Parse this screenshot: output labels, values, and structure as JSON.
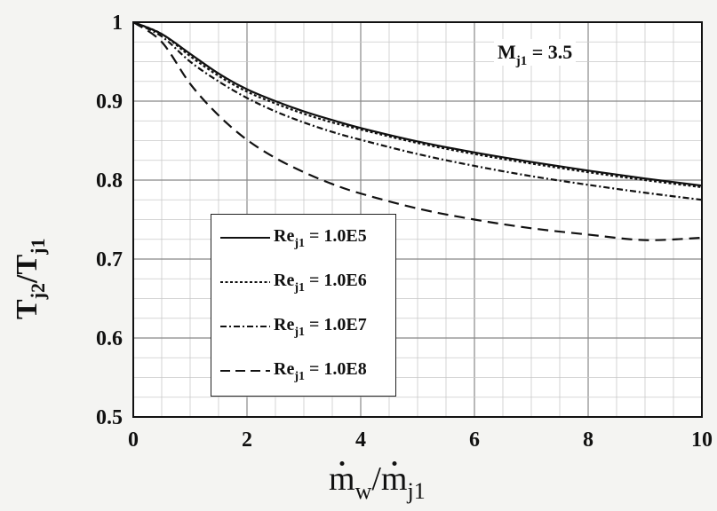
{
  "chart_data": {
    "type": "line",
    "title": "",
    "annotation": {
      "main": "M",
      "sub": "j1",
      "rest": " = 3.5"
    },
    "xlabel": {
      "a": "m",
      "a_sub": "w",
      "slash": "/",
      "b": "m",
      "b_sub": "j1"
    },
    "ylabel": {
      "a": "T",
      "a_sub": "j2",
      "slash": "/",
      "b": "T",
      "b_sub": "j1"
    },
    "xlim": [
      0,
      10
    ],
    "ylim": [
      0.5,
      1.0
    ],
    "x_ticks": [
      0,
      2,
      4,
      6,
      8,
      10
    ],
    "x_tick_labels": [
      "0",
      "2",
      "4",
      "6",
      "8",
      "10"
    ],
    "y_ticks": [
      0.5,
      0.6,
      0.7,
      0.8,
      0.9,
      1.0
    ],
    "y_tick_labels": [
      "0.5",
      "0.6",
      "0.7",
      "0.8",
      "0.9",
      "1"
    ],
    "grid": true,
    "legend_position": "lower-left",
    "x": [
      0,
      0.5,
      1,
      1.5,
      2,
      2.5,
      3,
      3.5,
      4,
      5,
      6,
      7,
      8,
      9,
      10
    ],
    "series": [
      {
        "name": "1.0E5",
        "legend": {
          "main": "Re",
          "sub": "j1",
          "rest": " = 1.0E5"
        },
        "style": "solid",
        "values": [
          1.0,
          0.985,
          0.96,
          0.935,
          0.915,
          0.9,
          0.887,
          0.876,
          0.866,
          0.849,
          0.835,
          0.823,
          0.812,
          0.802,
          0.793
        ]
      },
      {
        "name": "1.0E6",
        "legend": {
          "main": "Re",
          "sub": "j1",
          "rest": " = 1.0E6"
        },
        "style": "dotted",
        "values": [
          1.0,
          0.985,
          0.957,
          0.932,
          0.912,
          0.897,
          0.884,
          0.873,
          0.864,
          0.847,
          0.833,
          0.821,
          0.81,
          0.8,
          0.791
        ]
      },
      {
        "name": "1.0E7",
        "legend": {
          "main": "Re",
          "sub": "j1",
          "rest": " = 1.0E7"
        },
        "style": "dashdot",
        "values": [
          1.0,
          0.982,
          0.95,
          0.925,
          0.904,
          0.887,
          0.873,
          0.861,
          0.851,
          0.833,
          0.818,
          0.805,
          0.794,
          0.784,
          0.775
        ]
      },
      {
        "name": "1.0E8",
        "legend": {
          "main": "Re",
          "sub": "j1",
          "rest": " = 1.0E8"
        },
        "style": "dashed",
        "values": [
          1.0,
          0.975,
          0.922,
          0.882,
          0.851,
          0.828,
          0.81,
          0.795,
          0.783,
          0.764,
          0.75,
          0.739,
          0.731,
          0.724,
          0.727
        ]
      }
    ]
  }
}
